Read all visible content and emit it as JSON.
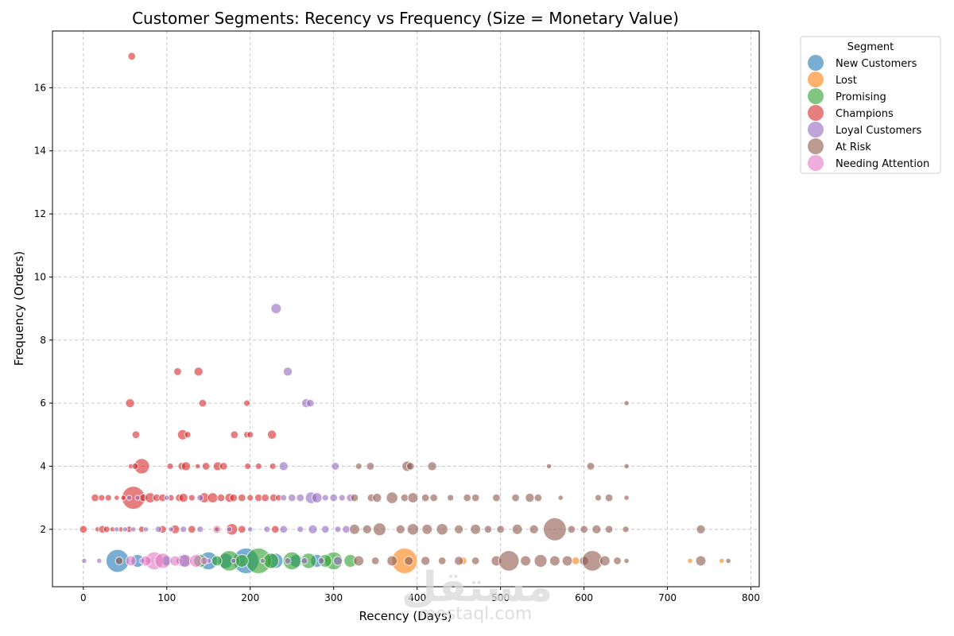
{
  "chart_data": {
    "type": "scatter",
    "title": "Customer Segments: Recency vs Frequency (Size = Monetary Value)",
    "xlabel": "Recency (Days)",
    "ylabel": "Frequency (Orders)",
    "xlim": [
      -37,
      810
    ],
    "ylim": [
      0.18,
      17.8
    ],
    "xticks": [
      0,
      100,
      200,
      300,
      400,
      500,
      600,
      700,
      800
    ],
    "yticks": [
      2,
      4,
      6,
      8,
      10,
      12,
      14,
      16
    ],
    "grid": true,
    "legend": {
      "title": "Segment",
      "placement": "outside-top-right",
      "entries": [
        "New Customers",
        "Lost",
        "Promising",
        "Champions",
        "Loyal Customers",
        "At Risk",
        "Needing Attention"
      ]
    },
    "colors": {
      "New Customers": "#1f77b4",
      "Lost": "#ff7f0e",
      "Promising": "#2ca02c",
      "Champions": "#d62728",
      "Loyal Customers": "#9467bd",
      "At Risk": "#8c564b",
      "Needing Attention": "#e377c2"
    },
    "size_encoding": "Monetary Value",
    "series": [
      {
        "name": "New Customers",
        "points": [
          [
            41,
            1,
            9
          ],
          [
            150,
            1,
            7
          ],
          [
            195,
            1,
            10
          ],
          [
            120,
            1,
            5
          ],
          [
            170,
            1,
            6
          ],
          [
            230,
            1,
            6
          ],
          [
            280,
            1,
            5
          ],
          [
            65,
            1,
            5
          ],
          [
            100,
            1,
            4
          ],
          [
            255,
            1,
            5
          ]
        ]
      },
      {
        "name": "Lost",
        "points": [
          [
            385,
            1,
            10
          ],
          [
            727,
            1,
            2
          ],
          [
            765,
            1,
            2
          ],
          [
            455,
            1,
            3
          ],
          [
            590,
            1,
            3
          ]
        ]
      },
      {
        "name": "Promising",
        "points": [
          [
            210,
            1,
            10
          ],
          [
            175,
            1,
            8
          ],
          [
            250,
            1,
            7
          ],
          [
            300,
            1,
            7
          ],
          [
            140,
            1,
            5
          ],
          [
            270,
            1,
            6
          ],
          [
            225,
            1,
            6
          ],
          [
            160,
            1,
            4
          ],
          [
            290,
            1,
            5
          ],
          [
            320,
            1,
            5
          ],
          [
            190,
            1,
            5
          ]
        ]
      },
      {
        "name": "Champions",
        "points": [
          [
            58,
            17,
            3
          ],
          [
            113,
            7,
            3
          ],
          [
            138,
            7,
            3.5
          ],
          [
            56,
            6,
            3.5
          ],
          [
            143,
            6,
            3
          ],
          [
            196,
            6,
            2.5
          ],
          [
            63,
            5,
            3
          ],
          [
            119,
            5,
            4
          ],
          [
            125,
            5,
            2.5
          ],
          [
            181,
            5,
            3
          ],
          [
            196,
            5,
            2.5
          ],
          [
            200,
            5,
            2.5
          ],
          [
            226,
            5,
            3.5
          ],
          [
            70,
            4,
            6
          ],
          [
            57,
            4,
            2
          ],
          [
            62,
            4,
            2.5
          ],
          [
            104,
            4,
            2.5
          ],
          [
            118,
            4,
            3
          ],
          [
            123,
            4,
            3.5
          ],
          [
            137,
            4,
            2
          ],
          [
            147,
            4,
            3
          ],
          [
            161,
            4,
            3.5
          ],
          [
            168,
            4,
            3
          ],
          [
            197,
            4,
            2.5
          ],
          [
            210,
            4,
            2.5
          ],
          [
            227,
            4,
            2.5
          ],
          [
            60,
            3,
            9
          ],
          [
            14,
            3,
            3
          ],
          [
            22,
            3,
            2.5
          ],
          [
            30,
            3,
            2.5
          ],
          [
            40,
            3,
            2
          ],
          [
            48,
            3,
            2
          ],
          [
            72,
            3,
            3
          ],
          [
            80,
            3,
            4
          ],
          [
            88,
            3,
            3
          ],
          [
            95,
            3,
            3
          ],
          [
            105,
            3,
            2.5
          ],
          [
            115,
            3,
            3
          ],
          [
            120,
            3,
            3.5
          ],
          [
            130,
            3,
            2.5
          ],
          [
            145,
            3,
            4
          ],
          [
            155,
            3,
            4
          ],
          [
            165,
            3,
            3
          ],
          [
            175,
            3,
            3.5
          ],
          [
            180,
            3,
            3
          ],
          [
            190,
            3,
            3
          ],
          [
            200,
            3,
            2.5
          ],
          [
            210,
            3,
            3
          ],
          [
            218,
            3,
            3
          ],
          [
            228,
            3,
            3
          ],
          [
            234,
            3,
            2.5
          ],
          [
            0,
            2,
            3
          ],
          [
            17,
            2,
            2
          ],
          [
            23,
            2,
            3
          ],
          [
            28,
            2,
            2.5
          ],
          [
            35,
            2,
            2
          ],
          [
            45,
            2,
            2
          ],
          [
            55,
            2,
            2.5
          ],
          [
            70,
            2,
            2.5
          ],
          [
            95,
            2,
            3
          ],
          [
            110,
            2,
            3.5
          ],
          [
            130,
            2,
            3
          ],
          [
            160,
            2,
            3
          ],
          [
            178,
            2,
            4.5
          ],
          [
            190,
            2,
            3
          ],
          [
            230,
            2,
            3
          ]
        ]
      },
      {
        "name": "Loyal Customers",
        "points": [
          [
            231,
            9,
            4
          ],
          [
            245,
            7,
            3.5
          ],
          [
            267,
            6,
            3.5
          ],
          [
            272,
            6,
            3
          ],
          [
            240,
            4,
            3.5
          ],
          [
            302,
            4,
            3
          ],
          [
            55,
            3,
            2
          ],
          [
            65,
            3,
            2
          ],
          [
            100,
            3,
            2
          ],
          [
            140,
            3,
            2.5
          ],
          [
            240,
            3,
            2.5
          ],
          [
            250,
            3,
            3
          ],
          [
            260,
            3,
            3
          ],
          [
            273,
            3,
            4.5
          ],
          [
            280,
            3,
            4
          ],
          [
            290,
            3,
            2.5
          ],
          [
            300,
            3,
            3
          ],
          [
            310,
            3,
            2.5
          ],
          [
            320,
            3,
            3
          ],
          [
            1,
            1,
            2
          ],
          [
            19,
            1,
            2
          ],
          [
            40,
            2,
            2
          ],
          [
            50,
            2,
            2
          ],
          [
            60,
            2,
            2
          ],
          [
            75,
            2,
            2
          ],
          [
            90,
            2,
            2.5
          ],
          [
            105,
            2,
            2
          ],
          [
            120,
            2,
            2.5
          ],
          [
            140,
            2,
            2.5
          ],
          [
            160,
            2,
            2
          ],
          [
            175,
            2,
            2
          ],
          [
            200,
            2,
            2
          ],
          [
            220,
            2,
            2.5
          ],
          [
            240,
            2,
            3
          ],
          [
            260,
            2,
            2.5
          ],
          [
            275,
            2,
            3.5
          ],
          [
            290,
            2,
            3
          ],
          [
            305,
            2,
            2.5
          ],
          [
            315,
            2,
            3
          ],
          [
            70,
            1,
            2
          ],
          [
            80,
            1,
            2
          ],
          [
            115,
            1,
            2.5
          ],
          [
            150,
            1,
            2
          ],
          [
            180,
            1,
            2
          ],
          [
            215,
            1,
            2
          ],
          [
            245,
            1,
            2.5
          ],
          [
            265,
            1,
            2.5
          ],
          [
            285,
            1,
            2.5
          ],
          [
            305,
            1,
            3.5
          ]
        ]
      },
      {
        "name": "At Risk",
        "points": [
          [
            651,
            6,
            2
          ],
          [
            330,
            4,
            2.5
          ],
          [
            344,
            4,
            3
          ],
          [
            388,
            4,
            4
          ],
          [
            392,
            4,
            3
          ],
          [
            418,
            4,
            3.5
          ],
          [
            558,
            4,
            2
          ],
          [
            608,
            4,
            3
          ],
          [
            651,
            4,
            2
          ],
          [
            325,
            3,
            3
          ],
          [
            345,
            3,
            3
          ],
          [
            352,
            3,
            3.5
          ],
          [
            370,
            3,
            4.5
          ],
          [
            385,
            3,
            3
          ],
          [
            395,
            3,
            4
          ],
          [
            410,
            3,
            3
          ],
          [
            420,
            3,
            3
          ],
          [
            440,
            3,
            2.5
          ],
          [
            460,
            3,
            3
          ],
          [
            470,
            3,
            3
          ],
          [
            495,
            3,
            3
          ],
          [
            518,
            3,
            3
          ],
          [
            535,
            3,
            3.5
          ],
          [
            545,
            3,
            3
          ],
          [
            572,
            3,
            2
          ],
          [
            617,
            3,
            2.5
          ],
          [
            630,
            3,
            3
          ],
          [
            651,
            3,
            2
          ],
          [
            325,
            2,
            4
          ],
          [
            340,
            2,
            3.5
          ],
          [
            355,
            2,
            5
          ],
          [
            380,
            2,
            3.5
          ],
          [
            395,
            2,
            4.5
          ],
          [
            412,
            2,
            4
          ],
          [
            430,
            2,
            4.5
          ],
          [
            450,
            2,
            3.5
          ],
          [
            470,
            2,
            4
          ],
          [
            485,
            2,
            3
          ],
          [
            500,
            2,
            3
          ],
          [
            520,
            2,
            4
          ],
          [
            540,
            2,
            3.5
          ],
          [
            565,
            2,
            9
          ],
          [
            585,
            2,
            3
          ],
          [
            600,
            2,
            3
          ],
          [
            615,
            2,
            3.5
          ],
          [
            630,
            2,
            3
          ],
          [
            650,
            2,
            2.5
          ],
          [
            740,
            2,
            3.5
          ],
          [
            43,
            1,
            3
          ],
          [
            330,
            1,
            4
          ],
          [
            350,
            1,
            3
          ],
          [
            370,
            1,
            4
          ],
          [
            390,
            1,
            3.5
          ],
          [
            410,
            1,
            3.5
          ],
          [
            430,
            1,
            3
          ],
          [
            450,
            1,
            3.5
          ],
          [
            470,
            1,
            3
          ],
          [
            495,
            1,
            4
          ],
          [
            510,
            1,
            8
          ],
          [
            530,
            1,
            4
          ],
          [
            548,
            1,
            5
          ],
          [
            565,
            1,
            4
          ],
          [
            580,
            1,
            4
          ],
          [
            600,
            1,
            3.5
          ],
          [
            610,
            1,
            8
          ],
          [
            625,
            1,
            4
          ],
          [
            640,
            1,
            3
          ],
          [
            651,
            1,
            2
          ],
          [
            740,
            1,
            4
          ],
          [
            773,
            1,
            2
          ]
        ]
      },
      {
        "name": "Needing Attention",
        "points": [
          [
            57,
            1,
            4
          ],
          [
            85,
            1,
            7
          ],
          [
            95,
            1,
            6
          ],
          [
            110,
            1,
            4
          ],
          [
            122,
            1,
            5
          ],
          [
            135,
            1,
            5
          ],
          [
            75,
            1,
            4
          ],
          [
            145,
            1,
            3
          ]
        ]
      }
    ]
  },
  "watermark": {
    "arabic": "مستقل",
    "latin": "mostaql.com"
  }
}
